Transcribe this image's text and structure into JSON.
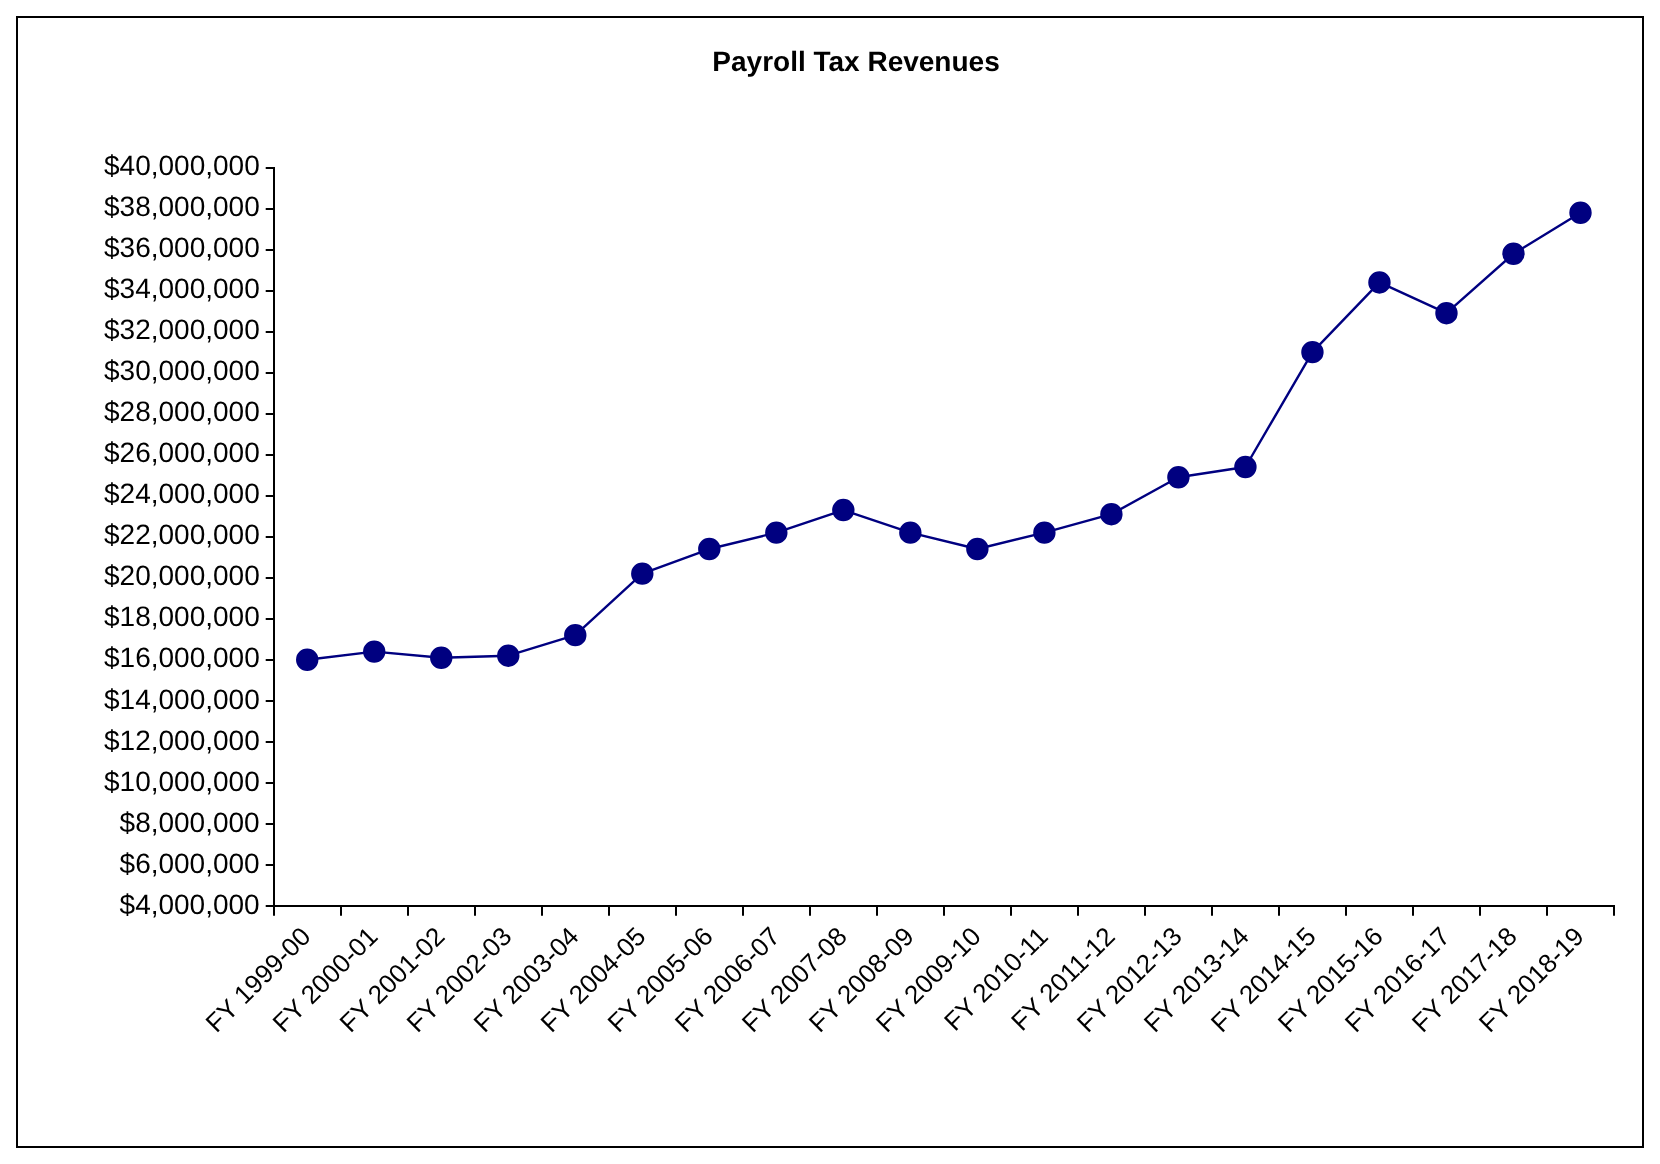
{
  "chart_data": {
    "type": "line",
    "title": "Payroll Tax Revenues",
    "categories": [
      "FY 1999-00",
      "FY 2000-01",
      "FY 2001-02",
      "FY 2002-03",
      "FY 2003-04",
      "FY 2004-05",
      "FY 2005-06",
      "FY 2006-07",
      "FY 2007-08",
      "FY 2008-09",
      "FY 2009-10",
      "FY 2010-11",
      "FY 2011-12",
      "FY 2012-13",
      "FY 2013-14",
      "FY 2014-15",
      "FY 2015-16",
      "FY 2016-17",
      "FY 2017-18",
      "FY 2018-19"
    ],
    "series": [
      {
        "color": "#000080",
        "values": [
          16000000,
          16400000,
          16100000,
          16200000,
          17200000,
          20200000,
          21400000,
          22200000,
          23300000,
          22200000,
          21400000,
          22200000,
          23100000,
          24900000,
          25400000,
          31000000,
          34400000,
          32900000,
          35800000,
          37800000
        ]
      }
    ],
    "ylim": [
      4000000,
      40000000
    ],
    "yticks": [
      {
        "value": 4000000,
        "label": "$4,000,000"
      },
      {
        "value": 6000000,
        "label": "$6,000,000"
      },
      {
        "value": 8000000,
        "label": "$8,000,000"
      },
      {
        "value": 10000000,
        "label": "$10,000,000"
      },
      {
        "value": 12000000,
        "label": "$12,000,000"
      },
      {
        "value": 14000000,
        "label": "$14,000,000"
      },
      {
        "value": 16000000,
        "label": "$16,000,000"
      },
      {
        "value": 18000000,
        "label": "$18,000,000"
      },
      {
        "value": 20000000,
        "label": "$20,000,000"
      },
      {
        "value": 22000000,
        "label": "$22,000,000"
      },
      {
        "value": 24000000,
        "label": "$24,000,000"
      },
      {
        "value": 26000000,
        "label": "$26,000,000"
      },
      {
        "value": 28000000,
        "label": "$28,000,000"
      },
      {
        "value": 30000000,
        "label": "$30,000,000"
      },
      {
        "value": 32000000,
        "label": "$32,000,000"
      },
      {
        "value": 34000000,
        "label": "$34,000,000"
      },
      {
        "value": 36000000,
        "label": "$36,000,000"
      },
      {
        "value": 38000000,
        "label": "$38,000,000"
      },
      {
        "value": 40000000,
        "label": "$40,000,000"
      }
    ],
    "grid": false,
    "legend": false,
    "marker": "circle",
    "line_style": "solid"
  }
}
